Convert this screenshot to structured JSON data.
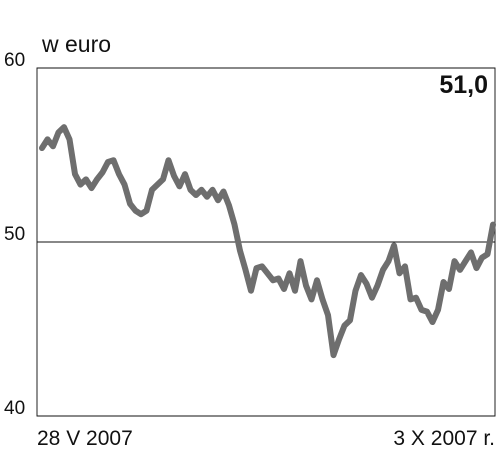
{
  "chart_data": {
    "type": "line",
    "title": "w euro",
    "categories": [
      "28 V 2007",
      null,
      null,
      null,
      null,
      null,
      null,
      null,
      null,
      null,
      null,
      null,
      null,
      null,
      null,
      null,
      null,
      null,
      null,
      null,
      null,
      null,
      null,
      null,
      null,
      null,
      null,
      null,
      null,
      null,
      null,
      null,
      null,
      null,
      null,
      null,
      null,
      null,
      null,
      null,
      null,
      null,
      null,
      null,
      null,
      null,
      null,
      null,
      null,
      null,
      null,
      null,
      null,
      null,
      null,
      null,
      null,
      null,
      null,
      null,
      null,
      null,
      null,
      null,
      null,
      null,
      null,
      null,
      null,
      null,
      null,
      null,
      null,
      null,
      null,
      null,
      null,
      null,
      null,
      null,
      null,
      null,
      "3 X 2007 r."
    ],
    "values": [
      55.4,
      55.9,
      55.5,
      56.3,
      56.6,
      55.9,
      53.9,
      53.3,
      53.6,
      53.1,
      53.6,
      54.0,
      54.6,
      54.7,
      53.9,
      53.3,
      52.2,
      51.8,
      51.6,
      51.8,
      53.0,
      53.3,
      53.6,
      54.7,
      53.8,
      53.2,
      53.9,
      53.0,
      52.7,
      53.0,
      52.6,
      53.0,
      52.4,
      52.9,
      52.1,
      51.0,
      49.5,
      48.4,
      47.2,
      48.5,
      48.6,
      48.2,
      47.8,
      47.9,
      47.3,
      48.2,
      47.2,
      48.9,
      47.5,
      46.7,
      47.8,
      46.7,
      45.8,
      43.5,
      44.4,
      45.2,
      45.5,
      47.2,
      48.1,
      47.6,
      46.8,
      47.5,
      48.4,
      48.9,
      49.8,
      48.2,
      48.6,
      46.7,
      46.8,
      46.1,
      46.0,
      45.4,
      46.1,
      47.7,
      47.3,
      48.9,
      48.4,
      48.9,
      49.4,
      48.5,
      49.1,
      49.3,
      51.0
    ],
    "value_labels": [
      null,
      null,
      null,
      null,
      null,
      null,
      null,
      null,
      null,
      null,
      null,
      null,
      null,
      null,
      null,
      null,
      null,
      null,
      null,
      null,
      null,
      null,
      null,
      null,
      null,
      null,
      null,
      null,
      null,
      null,
      null,
      null,
      null,
      null,
      null,
      null,
      null,
      null,
      null,
      null,
      null,
      null,
      null,
      null,
      null,
      null,
      null,
      null,
      null,
      null,
      null,
      null,
      null,
      null,
      null,
      null,
      null,
      null,
      null,
      null,
      null,
      null,
      null,
      null,
      null,
      null,
      null,
      null,
      null,
      null,
      null,
      null,
      null,
      null,
      null,
      null,
      null,
      null,
      null,
      null,
      null,
      null,
      "51,0"
    ],
    "color": "#6e6e6e",
    "ylim": [
      40,
      60
    ],
    "yticks": [
      40,
      50,
      60
    ],
    "grid": true
  }
}
